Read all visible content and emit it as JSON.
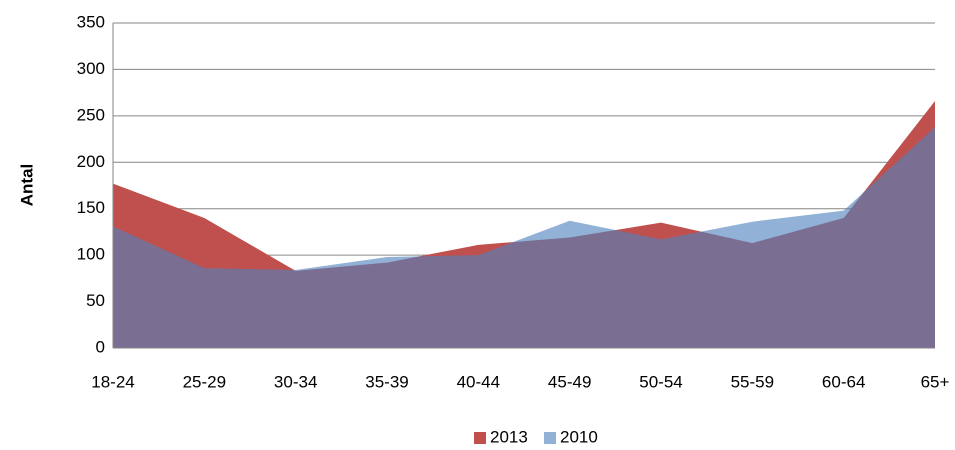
{
  "chart_data": {
    "type": "area",
    "y_label": "Antal",
    "categories": [
      "18-24",
      "25-29",
      "30-34",
      "35-39",
      "40-44",
      "45-49",
      "50-54",
      "55-59",
      "60-64",
      "65+"
    ],
    "series": [
      {
        "name": "2013",
        "color": "#c0504d",
        "values": [
          177,
          140,
          83,
          92,
          111,
          119,
          135,
          113,
          140,
          266
        ]
      },
      {
        "name": "2010",
        "color": "#4f81bd",
        "values": [
          131,
          86,
          84,
          98,
          100,
          137,
          117,
          136,
          148,
          238
        ]
      }
    ],
    "ylim": [
      0,
      350
    ],
    "yticks": [
      0,
      50,
      100,
      150,
      200,
      250,
      300,
      350
    ],
    "grid": true,
    "legend": "bottom"
  }
}
